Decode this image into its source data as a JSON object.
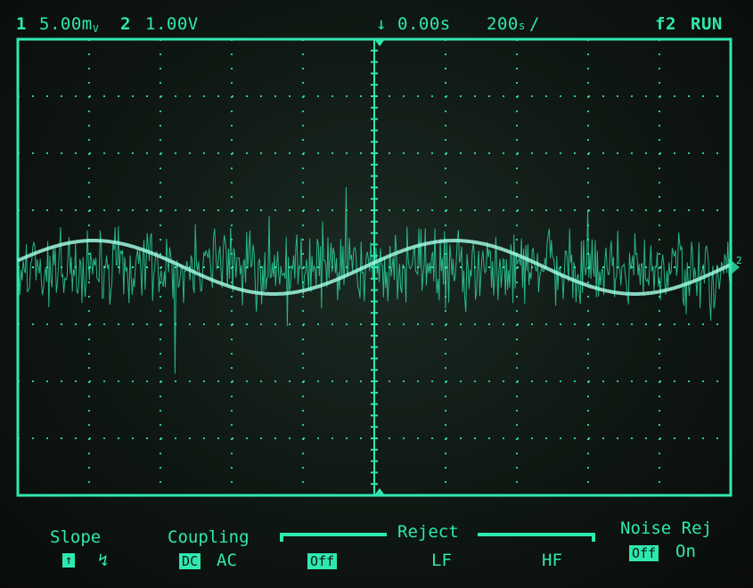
{
  "status": {
    "ch1_num": "1",
    "ch1_scale": "5.00m",
    "ch1_unit": "V",
    "ch2_num": "2",
    "ch2_scale": "1.00V",
    "delay_symbol": "↓",
    "delay": "0.00s",
    "timebase": "200",
    "timebase_unit": "s",
    "trigger": "f2",
    "run_state": "RUN"
  },
  "display": {
    "trace_color": "#2fe8b0",
    "grid_color": "#2fe8b0",
    "ch2_marker": "2"
  },
  "softkeys": {
    "slope_label": "Slope",
    "slope_rising_icon": "rising-edge-icon",
    "slope_falling_icon": "falling-edge-icon",
    "coupling_label": "Coupling",
    "coupling_dc": "DC",
    "coupling_ac": "AC",
    "reject_label": "Reject",
    "reject_off": "Off",
    "reject_lf": "LF",
    "reject_hf": "HF",
    "noise_label": "Noise Rej",
    "noise_off": "Off",
    "noise_on": "On"
  }
}
